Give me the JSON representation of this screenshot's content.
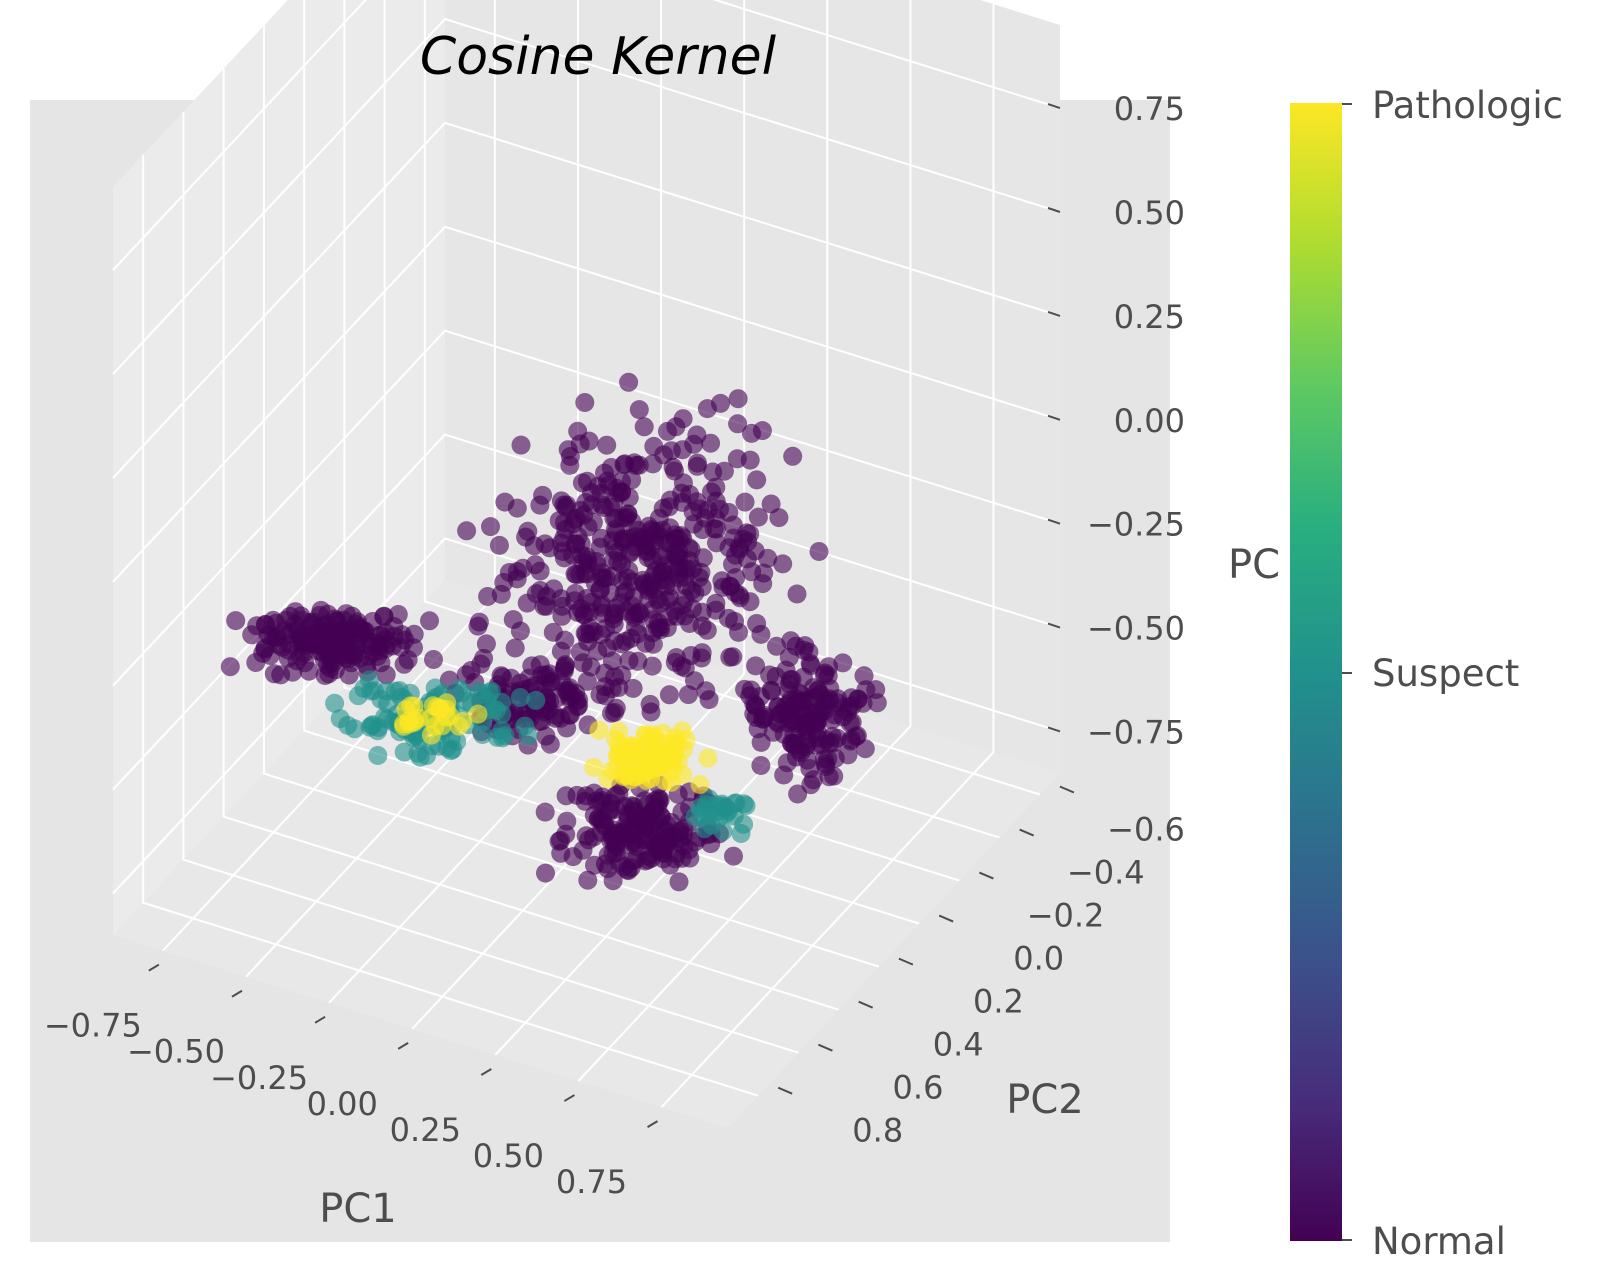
{
  "chart_data": {
    "type": "scatter",
    "projection": "3d",
    "title": "Cosine Kernel",
    "xlabel": "PC1",
    "ylabel": "PC2",
    "zlabel": "PC",
    "xlim": [
      -0.9,
      0.95
    ],
    "ylim": [
      -0.7,
      0.95
    ],
    "zlim": [
      -0.85,
      0.95
    ],
    "x_ticks": [
      "−0.75",
      "−0.50",
      "−0.25",
      "0.00",
      "0.25",
      "0.50",
      "0.75"
    ],
    "y_ticks": [
      "−0.6",
      "−0.4",
      "−0.2",
      "0.0",
      "0.2",
      "0.4",
      "0.6",
      "0.8"
    ],
    "z_ticks": [
      "−0.75",
      "−0.50",
      "−0.25",
      "0.00",
      "0.25",
      "0.50",
      "0.75"
    ],
    "grid": true,
    "marker_alpha": 0.6,
    "colormap": "viridis",
    "colorbar": {
      "ticks": [
        "Normal",
        "Suspect",
        "Pathologic"
      ],
      "colors": [
        "#440154",
        "#21918c",
        "#fde725"
      ]
    },
    "series": [
      {
        "name": "Normal",
        "color": "#440154",
        "x_range": [
          -0.8,
          0.9
        ],
        "y_range": [
          -0.6,
          0.9
        ],
        "z_range": [
          -0.8,
          0.85
        ]
      },
      {
        "name": "Suspect",
        "color": "#21918c",
        "x_range": [
          -0.75,
          0.35
        ],
        "y_range": [
          -0.4,
          0.5
        ],
        "z_range": [
          -0.7,
          -0.2
        ]
      },
      {
        "name": "Pathologic",
        "color": "#fde725",
        "x_range": [
          -0.6,
          0.45
        ],
        "y_range": [
          -0.3,
          0.4
        ],
        "z_range": [
          -0.75,
          -0.3
        ]
      }
    ]
  }
}
